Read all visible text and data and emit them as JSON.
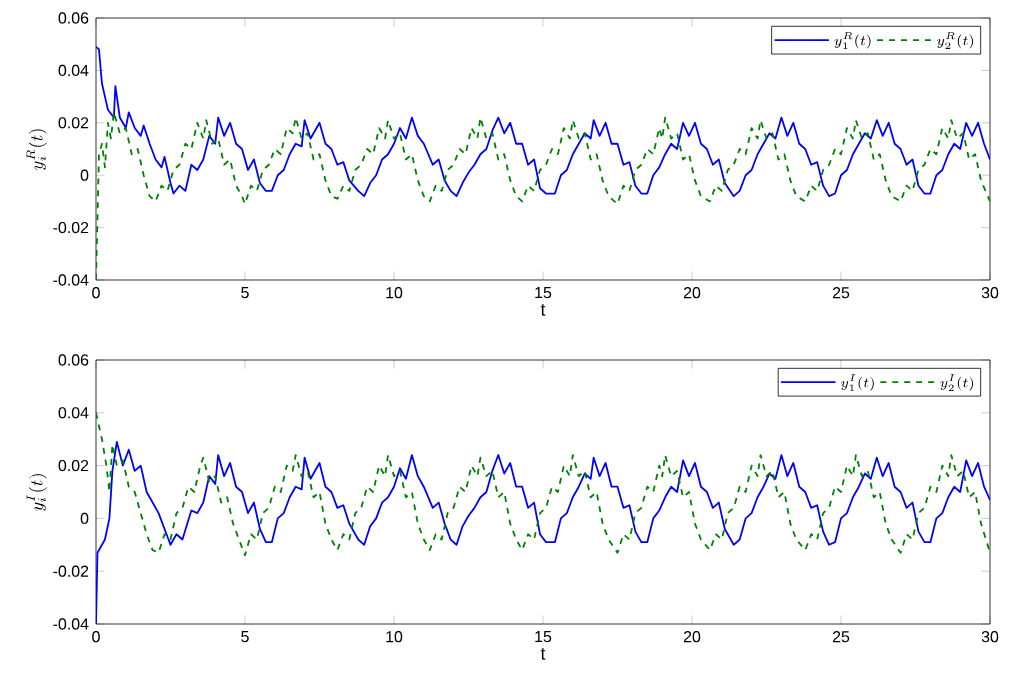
{
  "chart_data": [
    {
      "type": "line",
      "xlabel": "t",
      "ylabel": "y_i^R(t)",
      "xlim": [
        0,
        30
      ],
      "xticks": [
        0,
        5,
        10,
        15,
        20,
        25,
        30
      ],
      "ylim": [
        -0.04,
        0.06
      ],
      "yticks": [
        -0.04,
        -0.02,
        0,
        0.02,
        0.04,
        0.06
      ],
      "legend": "top right",
      "marker": "none",
      "series": [
        {
          "name": "y_1^R(t)",
          "color": "#0000ff",
          "line_style": "solid",
          "x": [
            0,
            0.1,
            0.2,
            0.3,
            0.4,
            0.6,
            0.65,
            0.8,
            1.0,
            1.1,
            1.3,
            1.5,
            1.6,
            1.8,
            2.0,
            2.2,
            2.3,
            2.5,
            2.6,
            2.8,
            3.0,
            3.2,
            3.4,
            3.6,
            3.8,
            4.0,
            4.1,
            4.3,
            4.5,
            4.7,
            4.9,
            5.1,
            5.3,
            5.5,
            5.7,
            5.9,
            6.1,
            6.3,
            6.5,
            6.7,
            6.9,
            7.0,
            7.2,
            7.5,
            7.7,
            7.9,
            8.1,
            8.3,
            8.5,
            8.8,
            9.0,
            9.2,
            9.4,
            9.6,
            9.8,
            10.0,
            10.2,
            10.4,
            10.6,
            10.8,
            11.0,
            11.3,
            11.5,
            11.7,
            11.9,
            12.1,
            12.3,
            12.5,
            12.7,
            12.9,
            13.1,
            13.3,
            13.5,
            13.7,
            13.9,
            14.1,
            14.3,
            14.5,
            14.7,
            14.9,
            15.1,
            15.4,
            15.6,
            15.8,
            16.0,
            16.2,
            16.4,
            16.6,
            16.7,
            16.9,
            17.1,
            17.3,
            17.5,
            17.7,
            17.9,
            18.1,
            18.3,
            18.5,
            18.7,
            18.9,
            19.1,
            19.3,
            19.5,
            19.7,
            19.9,
            20.1,
            20.3,
            20.5,
            20.7,
            20.9,
            21.1,
            21.4,
            21.6,
            21.8,
            22.0,
            22.2,
            22.4,
            22.6,
            22.8,
            23.0,
            23.2,
            23.4,
            23.6,
            23.8,
            24.0,
            24.2,
            24.4,
            24.6,
            24.8,
            25.0,
            25.2,
            25.4,
            25.6,
            25.8,
            26.0,
            26.2,
            26.4,
            26.6,
            26.8,
            27.0,
            27.2,
            27.4,
            27.6,
            27.8,
            28.0,
            28.2,
            28.4,
            28.6,
            28.8,
            29.0,
            29.2,
            29.4,
            29.6,
            29.8,
            30
          ],
          "values": [
            0.049,
            0.048,
            0.035,
            0.03,
            0.025,
            0.022,
            0.034,
            0.022,
            0.018,
            0.024,
            0.018,
            0.015,
            0.019,
            0.012,
            0.006,
            0.003,
            0.007,
            -0.003,
            -0.007,
            -0.004,
            -0.006,
            0.004,
            0.002,
            0.006,
            0.015,
            0.012,
            0.022,
            0.015,
            0.02,
            0.012,
            0.01,
            0.002,
            0.006,
            -0.003,
            -0.006,
            -0.006,
            0.0,
            0.002,
            0.008,
            0.012,
            0.011,
            0.021,
            0.014,
            0.02,
            0.012,
            0.01,
            0.004,
            0.005,
            -0.002,
            -0.006,
            -0.008,
            -0.003,
            0.0,
            0.006,
            0.008,
            0.012,
            0.018,
            0.014,
            0.022,
            0.015,
            0.012,
            0.004,
            0.006,
            -0.002,
            -0.006,
            -0.008,
            -0.003,
            0.001,
            0.004,
            0.008,
            0.01,
            0.017,
            0.022,
            0.016,
            0.02,
            0.012,
            0.012,
            0.004,
            0.006,
            -0.005,
            -0.007,
            -0.007,
            0.0,
            0.002,
            0.008,
            0.012,
            0.016,
            0.014,
            0.021,
            0.015,
            0.02,
            0.012,
            0.012,
            0.004,
            0.005,
            -0.004,
            -0.007,
            -0.007,
            0.0,
            0.003,
            0.008,
            0.012,
            0.01,
            0.02,
            0.015,
            0.02,
            0.012,
            0.01,
            0.004,
            0.006,
            -0.003,
            -0.008,
            -0.006,
            0.0,
            0.002,
            0.008,
            0.012,
            0.016,
            0.014,
            0.022,
            0.015,
            0.02,
            0.012,
            0.01,
            0.004,
            0.005,
            -0.004,
            -0.008,
            -0.007,
            0.0,
            0.002,
            0.008,
            0.012,
            0.016,
            0.014,
            0.021,
            0.015,
            0.02,
            0.012,
            0.01,
            0.004,
            0.006,
            -0.004,
            -0.007,
            -0.007,
            0.0,
            0.002,
            0.008,
            0.012,
            0.01,
            0.02,
            0.015,
            0.02,
            0.012,
            0.006
          ]
        },
        {
          "name": "y_2^R(t)",
          "color": "#008000",
          "line_style": "dashed",
          "x": [
            0,
            0.1,
            0.2,
            0.3,
            0.4,
            0.5,
            0.6,
            0.8,
            1.0,
            1.2,
            1.4,
            1.6,
            1.8,
            2.0,
            2.2,
            2.4,
            2.6,
            2.8,
            3.0,
            3.2,
            3.4,
            3.6,
            3.7,
            3.9,
            4.1,
            4.3,
            4.5,
            4.7,
            4.9,
            5.0,
            5.2,
            5.4,
            5.6,
            5.8,
            6.0,
            6.2,
            6.4,
            6.6,
            6.7,
            6.9,
            7.1,
            7.3,
            7.5,
            7.7,
            7.9,
            8.1,
            8.3,
            8.5,
            8.7,
            8.9,
            9.1,
            9.3,
            9.5,
            9.7,
            9.8,
            10.0,
            10.2,
            10.4,
            10.6,
            10.8,
            11.0,
            11.2,
            11.4,
            11.6,
            11.8,
            12.0,
            12.2,
            12.4,
            12.6,
            12.8,
            12.9,
            13.1,
            13.3,
            13.5,
            13.7,
            13.9,
            14.1,
            14.3,
            14.5,
            14.7,
            14.9,
            15.1,
            15.3,
            15.5,
            15.7,
            15.9,
            16.0,
            16.2,
            16.4,
            16.6,
            16.8,
            17.0,
            17.2,
            17.5,
            17.7,
            17.9,
            18.1,
            18.3,
            18.5,
            18.7,
            18.9,
            19.0,
            19.1,
            19.3,
            19.5,
            19.7,
            19.9,
            20.1,
            20.3,
            20.6,
            20.8,
            21.0,
            21.2,
            21.4,
            21.6,
            21.8,
            22.0,
            22.2,
            22.3,
            22.5,
            22.7,
            22.9,
            23.1,
            23.3,
            23.5,
            23.8,
            24.0,
            24.2,
            24.4,
            24.6,
            24.8,
            25.0,
            25.2,
            25.4,
            25.5,
            25.7,
            25.9,
            26.1,
            26.3,
            26.5,
            26.7,
            27.0,
            27.2,
            27.4,
            27.6,
            27.8,
            28.0,
            28.2,
            28.4,
            28.6,
            28.7,
            28.9,
            29.1,
            29.3,
            29.5,
            29.7,
            30
          ],
          "values": [
            -0.04,
            0.008,
            0.012,
            0.003,
            0.02,
            0.014,
            0.024,
            0.016,
            0.018,
            0.008,
            0.01,
            0.0,
            -0.008,
            -0.01,
            -0.004,
            -0.006,
            0.002,
            0.004,
            0.012,
            0.01,
            0.02,
            0.014,
            0.021,
            0.012,
            0.014,
            0.004,
            0.006,
            -0.004,
            -0.008,
            -0.011,
            -0.004,
            -0.006,
            0.002,
            0.004,
            0.01,
            0.008,
            0.018,
            0.016,
            0.022,
            0.014,
            0.016,
            0.006,
            0.008,
            -0.002,
            -0.008,
            -0.009,
            -0.004,
            -0.006,
            0.002,
            0.004,
            0.01,
            0.008,
            0.018,
            0.014,
            0.021,
            0.014,
            0.016,
            0.006,
            0.008,
            -0.002,
            -0.008,
            -0.01,
            -0.004,
            -0.006,
            0.002,
            0.004,
            0.01,
            0.008,
            0.018,
            0.014,
            0.022,
            0.014,
            0.016,
            0.006,
            0.008,
            -0.002,
            -0.008,
            -0.01,
            -0.004,
            -0.006,
            0.002,
            0.004,
            0.01,
            0.008,
            0.018,
            0.014,
            0.021,
            0.014,
            0.016,
            0.006,
            0.008,
            -0.002,
            -0.008,
            -0.011,
            -0.004,
            -0.006,
            0.002,
            0.004,
            0.01,
            0.008,
            0.018,
            0.014,
            0.022,
            0.014,
            0.016,
            0.006,
            0.008,
            -0.002,
            -0.008,
            -0.01,
            -0.004,
            -0.006,
            0.002,
            0.004,
            0.01,
            0.008,
            0.018,
            0.014,
            0.021,
            0.014,
            0.016,
            0.006,
            0.008,
            -0.002,
            -0.008,
            -0.01,
            -0.004,
            -0.006,
            0.002,
            0.004,
            0.01,
            0.008,
            0.018,
            0.014,
            0.021,
            0.014,
            0.016,
            0.006,
            0.008,
            -0.002,
            -0.008,
            -0.01,
            -0.004,
            -0.006,
            0.002,
            0.004,
            0.01,
            0.008,
            0.018,
            0.014,
            0.021,
            0.014,
            0.016,
            0.006,
            0.008,
            -0.002,
            -0.01
          ]
        }
      ]
    },
    {
      "type": "line",
      "xlabel": "t",
      "ylabel": "y_i^I(t)",
      "xlim": [
        0,
        30
      ],
      "xticks": [
        0,
        5,
        10,
        15,
        20,
        25,
        30
      ],
      "ylim": [
        -0.04,
        0.06
      ],
      "yticks": [
        -0.04,
        -0.02,
        0,
        0.02,
        0.04,
        0.06
      ],
      "legend": "top right",
      "marker": "none",
      "series": [
        {
          "name": "y_1^I(t)",
          "color": "#0000ff",
          "line_style": "solid",
          "x": [
            0,
            0.05,
            0.3,
            0.45,
            0.55,
            0.7,
            0.9,
            1.1,
            1.3,
            1.5,
            1.7,
            1.9,
            2.1,
            2.3,
            2.5,
            2.7,
            2.9,
            3.2,
            3.4,
            3.6,
            3.8,
            4.0,
            4.1,
            4.3,
            4.5,
            4.7,
            4.9,
            5.1,
            5.3,
            5.5,
            5.7,
            5.9,
            6.1,
            6.3,
            6.5,
            6.7,
            6.9,
            7.0,
            7.2,
            7.5,
            7.7,
            7.9,
            8.1,
            8.3,
            8.5,
            8.8,
            9.0,
            9.2,
            9.4,
            9.6,
            9.8,
            10.0,
            10.2,
            10.4,
            10.6,
            10.8,
            11.0,
            11.3,
            11.5,
            11.7,
            11.9,
            12.1,
            12.3,
            12.5,
            12.7,
            12.9,
            13.1,
            13.3,
            13.5,
            13.7,
            13.9,
            14.1,
            14.3,
            14.5,
            14.7,
            14.9,
            15.1,
            15.4,
            15.6,
            15.8,
            16.0,
            16.2,
            16.4,
            16.6,
            16.7,
            16.9,
            17.1,
            17.3,
            17.5,
            17.7,
            17.9,
            18.1,
            18.3,
            18.5,
            18.7,
            18.9,
            19.1,
            19.3,
            19.5,
            19.7,
            19.9,
            20.1,
            20.3,
            20.5,
            20.7,
            20.9,
            21.1,
            21.4,
            21.6,
            21.8,
            22.0,
            22.2,
            22.4,
            22.6,
            22.8,
            23.0,
            23.2,
            23.4,
            23.6,
            23.8,
            24.0,
            24.2,
            24.4,
            24.6,
            24.8,
            25.0,
            25.2,
            25.4,
            25.6,
            25.8,
            26.0,
            26.2,
            26.4,
            26.6,
            26.8,
            27.0,
            27.2,
            27.4,
            27.6,
            27.8,
            28.0,
            28.2,
            28.4,
            28.6,
            28.8,
            29.0,
            29.2,
            29.4,
            29.6,
            29.8,
            30
          ],
          "values": [
            -0.04,
            -0.013,
            -0.008,
            0.0,
            0.018,
            0.029,
            0.02,
            0.026,
            0.018,
            0.02,
            0.01,
            0.006,
            0.002,
            -0.004,
            -0.01,
            -0.006,
            -0.008,
            0.003,
            0.002,
            0.006,
            0.016,
            0.013,
            0.024,
            0.016,
            0.021,
            0.012,
            0.01,
            0.002,
            0.006,
            -0.004,
            -0.009,
            -0.009,
            0.0,
            0.002,
            0.008,
            0.012,
            0.011,
            0.023,
            0.015,
            0.021,
            0.012,
            0.01,
            0.004,
            0.005,
            -0.002,
            -0.008,
            -0.01,
            -0.003,
            0.0,
            0.006,
            0.008,
            0.012,
            0.019,
            0.015,
            0.024,
            0.016,
            0.012,
            0.004,
            0.006,
            -0.002,
            -0.008,
            -0.01,
            -0.003,
            0.001,
            0.004,
            0.008,
            0.01,
            0.018,
            0.024,
            0.017,
            0.021,
            0.012,
            0.012,
            0.004,
            0.006,
            -0.006,
            -0.009,
            -0.009,
            0.0,
            0.002,
            0.008,
            0.012,
            0.017,
            0.015,
            0.023,
            0.016,
            0.021,
            0.012,
            0.012,
            0.004,
            0.005,
            -0.005,
            -0.009,
            -0.009,
            0.0,
            0.003,
            0.008,
            0.012,
            0.01,
            0.022,
            0.016,
            0.021,
            0.012,
            0.01,
            0.004,
            0.006,
            -0.004,
            -0.01,
            -0.008,
            0.0,
            0.002,
            0.008,
            0.012,
            0.017,
            0.015,
            0.024,
            0.016,
            0.021,
            0.012,
            0.01,
            0.004,
            0.005,
            -0.005,
            -0.01,
            -0.009,
            0.0,
            0.002,
            0.008,
            0.012,
            0.017,
            0.015,
            0.023,
            0.016,
            0.021,
            0.012,
            0.01,
            0.004,
            0.006,
            -0.005,
            -0.009,
            -0.009,
            0.0,
            0.002,
            0.008,
            0.012,
            0.01,
            0.022,
            0.016,
            0.021,
            0.012,
            0.007
          ]
        },
        {
          "name": "y_2^I(t)",
          "color": "#008000",
          "line_style": "dashed",
          "x": [
            0,
            0.2,
            0.35,
            0.45,
            0.55,
            0.7,
            0.9,
            1.1,
            1.3,
            1.5,
            1.7,
            1.9,
            2.1,
            2.3,
            2.5,
            2.7,
            2.9,
            3.1,
            3.3,
            3.5,
            3.6,
            3.8,
            4.0,
            4.2,
            4.4,
            4.6,
            4.8,
            5.0,
            5.2,
            5.4,
            5.6,
            5.8,
            6.0,
            6.2,
            6.4,
            6.6,
            6.7,
            6.9,
            7.1,
            7.3,
            7.5,
            7.7,
            7.9,
            8.1,
            8.3,
            8.5,
            8.7,
            8.9,
            9.1,
            9.3,
            9.5,
            9.7,
            9.8,
            10.0,
            10.2,
            10.4,
            10.6,
            10.8,
            11.0,
            11.2,
            11.4,
            11.6,
            11.8,
            12.0,
            12.2,
            12.4,
            12.6,
            12.8,
            12.9,
            13.1,
            13.3,
            13.5,
            13.7,
            13.9,
            14.1,
            14.3,
            14.5,
            14.7,
            14.9,
            15.1,
            15.3,
            15.5,
            15.7,
            15.9,
            16.0,
            16.2,
            16.4,
            16.6,
            16.8,
            17.0,
            17.2,
            17.5,
            17.7,
            17.9,
            18.1,
            18.3,
            18.5,
            18.7,
            18.9,
            19.0,
            19.1,
            19.3,
            19.5,
            19.7,
            19.9,
            20.1,
            20.3,
            20.6,
            20.8,
            21.0,
            21.2,
            21.4,
            21.6,
            21.8,
            22.0,
            22.2,
            22.3,
            22.5,
            22.7,
            22.9,
            23.1,
            23.3,
            23.5,
            23.8,
            24.0,
            24.2,
            24.4,
            24.6,
            24.8,
            25.0,
            25.2,
            25.4,
            25.5,
            25.7,
            25.9,
            26.1,
            26.3,
            26.5,
            26.7,
            27.0,
            27.2,
            27.4,
            27.6,
            27.8,
            28.0,
            28.2,
            28.4,
            28.6,
            28.7,
            28.9,
            29.1,
            29.3,
            29.5,
            29.7,
            30
          ],
          "values": [
            0.04,
            0.03,
            0.02,
            0.01,
            0.028,
            0.02,
            0.022,
            0.012,
            0.01,
            0.002,
            -0.006,
            -0.012,
            -0.013,
            -0.006,
            -0.008,
            0.002,
            0.004,
            0.012,
            0.01,
            0.02,
            0.023,
            0.014,
            0.016,
            0.006,
            0.008,
            -0.002,
            -0.008,
            -0.014,
            -0.006,
            -0.008,
            0.002,
            0.004,
            0.012,
            0.01,
            0.02,
            0.018,
            0.024,
            0.016,
            0.018,
            0.008,
            0.01,
            -0.002,
            -0.008,
            -0.012,
            -0.006,
            -0.008,
            0.002,
            0.004,
            0.012,
            0.01,
            0.02,
            0.016,
            0.024,
            0.016,
            0.018,
            0.008,
            0.01,
            -0.002,
            -0.008,
            -0.012,
            -0.006,
            -0.008,
            0.002,
            0.004,
            0.012,
            0.01,
            0.02,
            0.016,
            0.023,
            0.016,
            0.018,
            0.008,
            0.01,
            -0.002,
            -0.008,
            -0.012,
            -0.006,
            -0.008,
            0.002,
            0.004,
            0.012,
            0.01,
            0.02,
            0.016,
            0.024,
            0.016,
            0.018,
            0.008,
            0.01,
            -0.002,
            -0.008,
            -0.013,
            -0.006,
            -0.008,
            0.002,
            0.004,
            0.012,
            0.01,
            0.02,
            0.016,
            0.024,
            0.016,
            0.018,
            0.008,
            0.01,
            -0.002,
            -0.008,
            -0.012,
            -0.006,
            -0.008,
            0.002,
            0.004,
            0.012,
            0.01,
            0.02,
            0.016,
            0.024,
            0.016,
            0.018,
            0.008,
            0.01,
            -0.002,
            -0.008,
            -0.012,
            -0.006,
            -0.008,
            0.002,
            0.004,
            0.012,
            0.01,
            0.02,
            0.016,
            0.024,
            0.016,
            0.018,
            0.008,
            0.01,
            -0.002,
            -0.008,
            -0.013,
            -0.006,
            -0.008,
            0.002,
            0.004,
            0.012,
            0.01,
            0.02,
            0.016,
            0.024,
            0.016,
            0.018,
            0.008,
            0.01,
            -0.002,
            -0.013
          ]
        }
      ]
    }
  ]
}
